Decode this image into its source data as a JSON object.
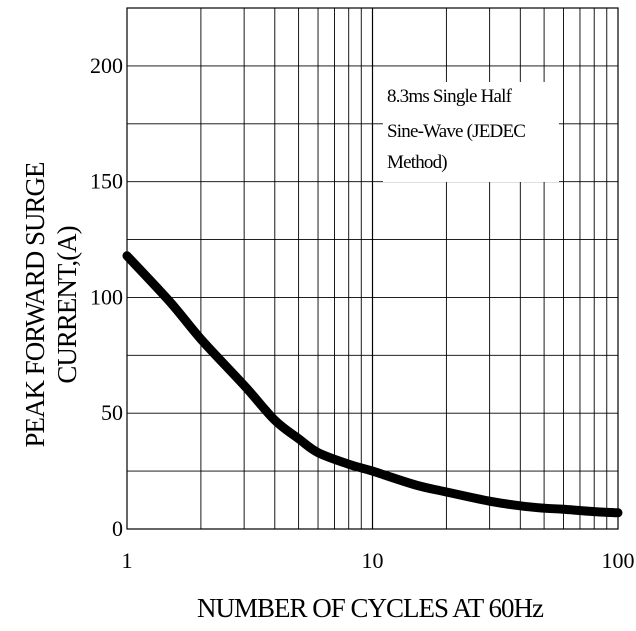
{
  "chart_data": {
    "type": "line",
    "xscale": "log",
    "xlim": [
      1,
      100
    ],
    "ylim": [
      0,
      225
    ],
    "grid": true,
    "xlabel": "NUMBER OF CYCLES AT 60Hz",
    "ylabel_lines": [
      "PEAK FORWARD SURGE",
      "CURRENT,(A)"
    ],
    "xticks": [
      1,
      10,
      100
    ],
    "xtick_labels": [
      "1",
      "10",
      "100"
    ],
    "yticks": [
      0,
      50,
      100,
      150,
      200
    ],
    "ytick_labels": [
      "0",
      "50",
      "100",
      "150",
      "200"
    ],
    "annotation_lines": [
      "8.3ms Single Half",
      "Sine-Wave (JEDEC",
      "Method)"
    ],
    "series": [
      {
        "x": [
          1,
          1.5,
          2,
          3,
          4,
          5,
          6,
          8,
          10,
          15,
          20,
          30,
          40,
          50,
          60,
          80,
          100
        ],
        "y": [
          118,
          98,
          82,
          62,
          47,
          39,
          33,
          28,
          25,
          19,
          16,
          12,
          10,
          9,
          8.5,
          7.5,
          7
        ]
      }
    ]
  }
}
